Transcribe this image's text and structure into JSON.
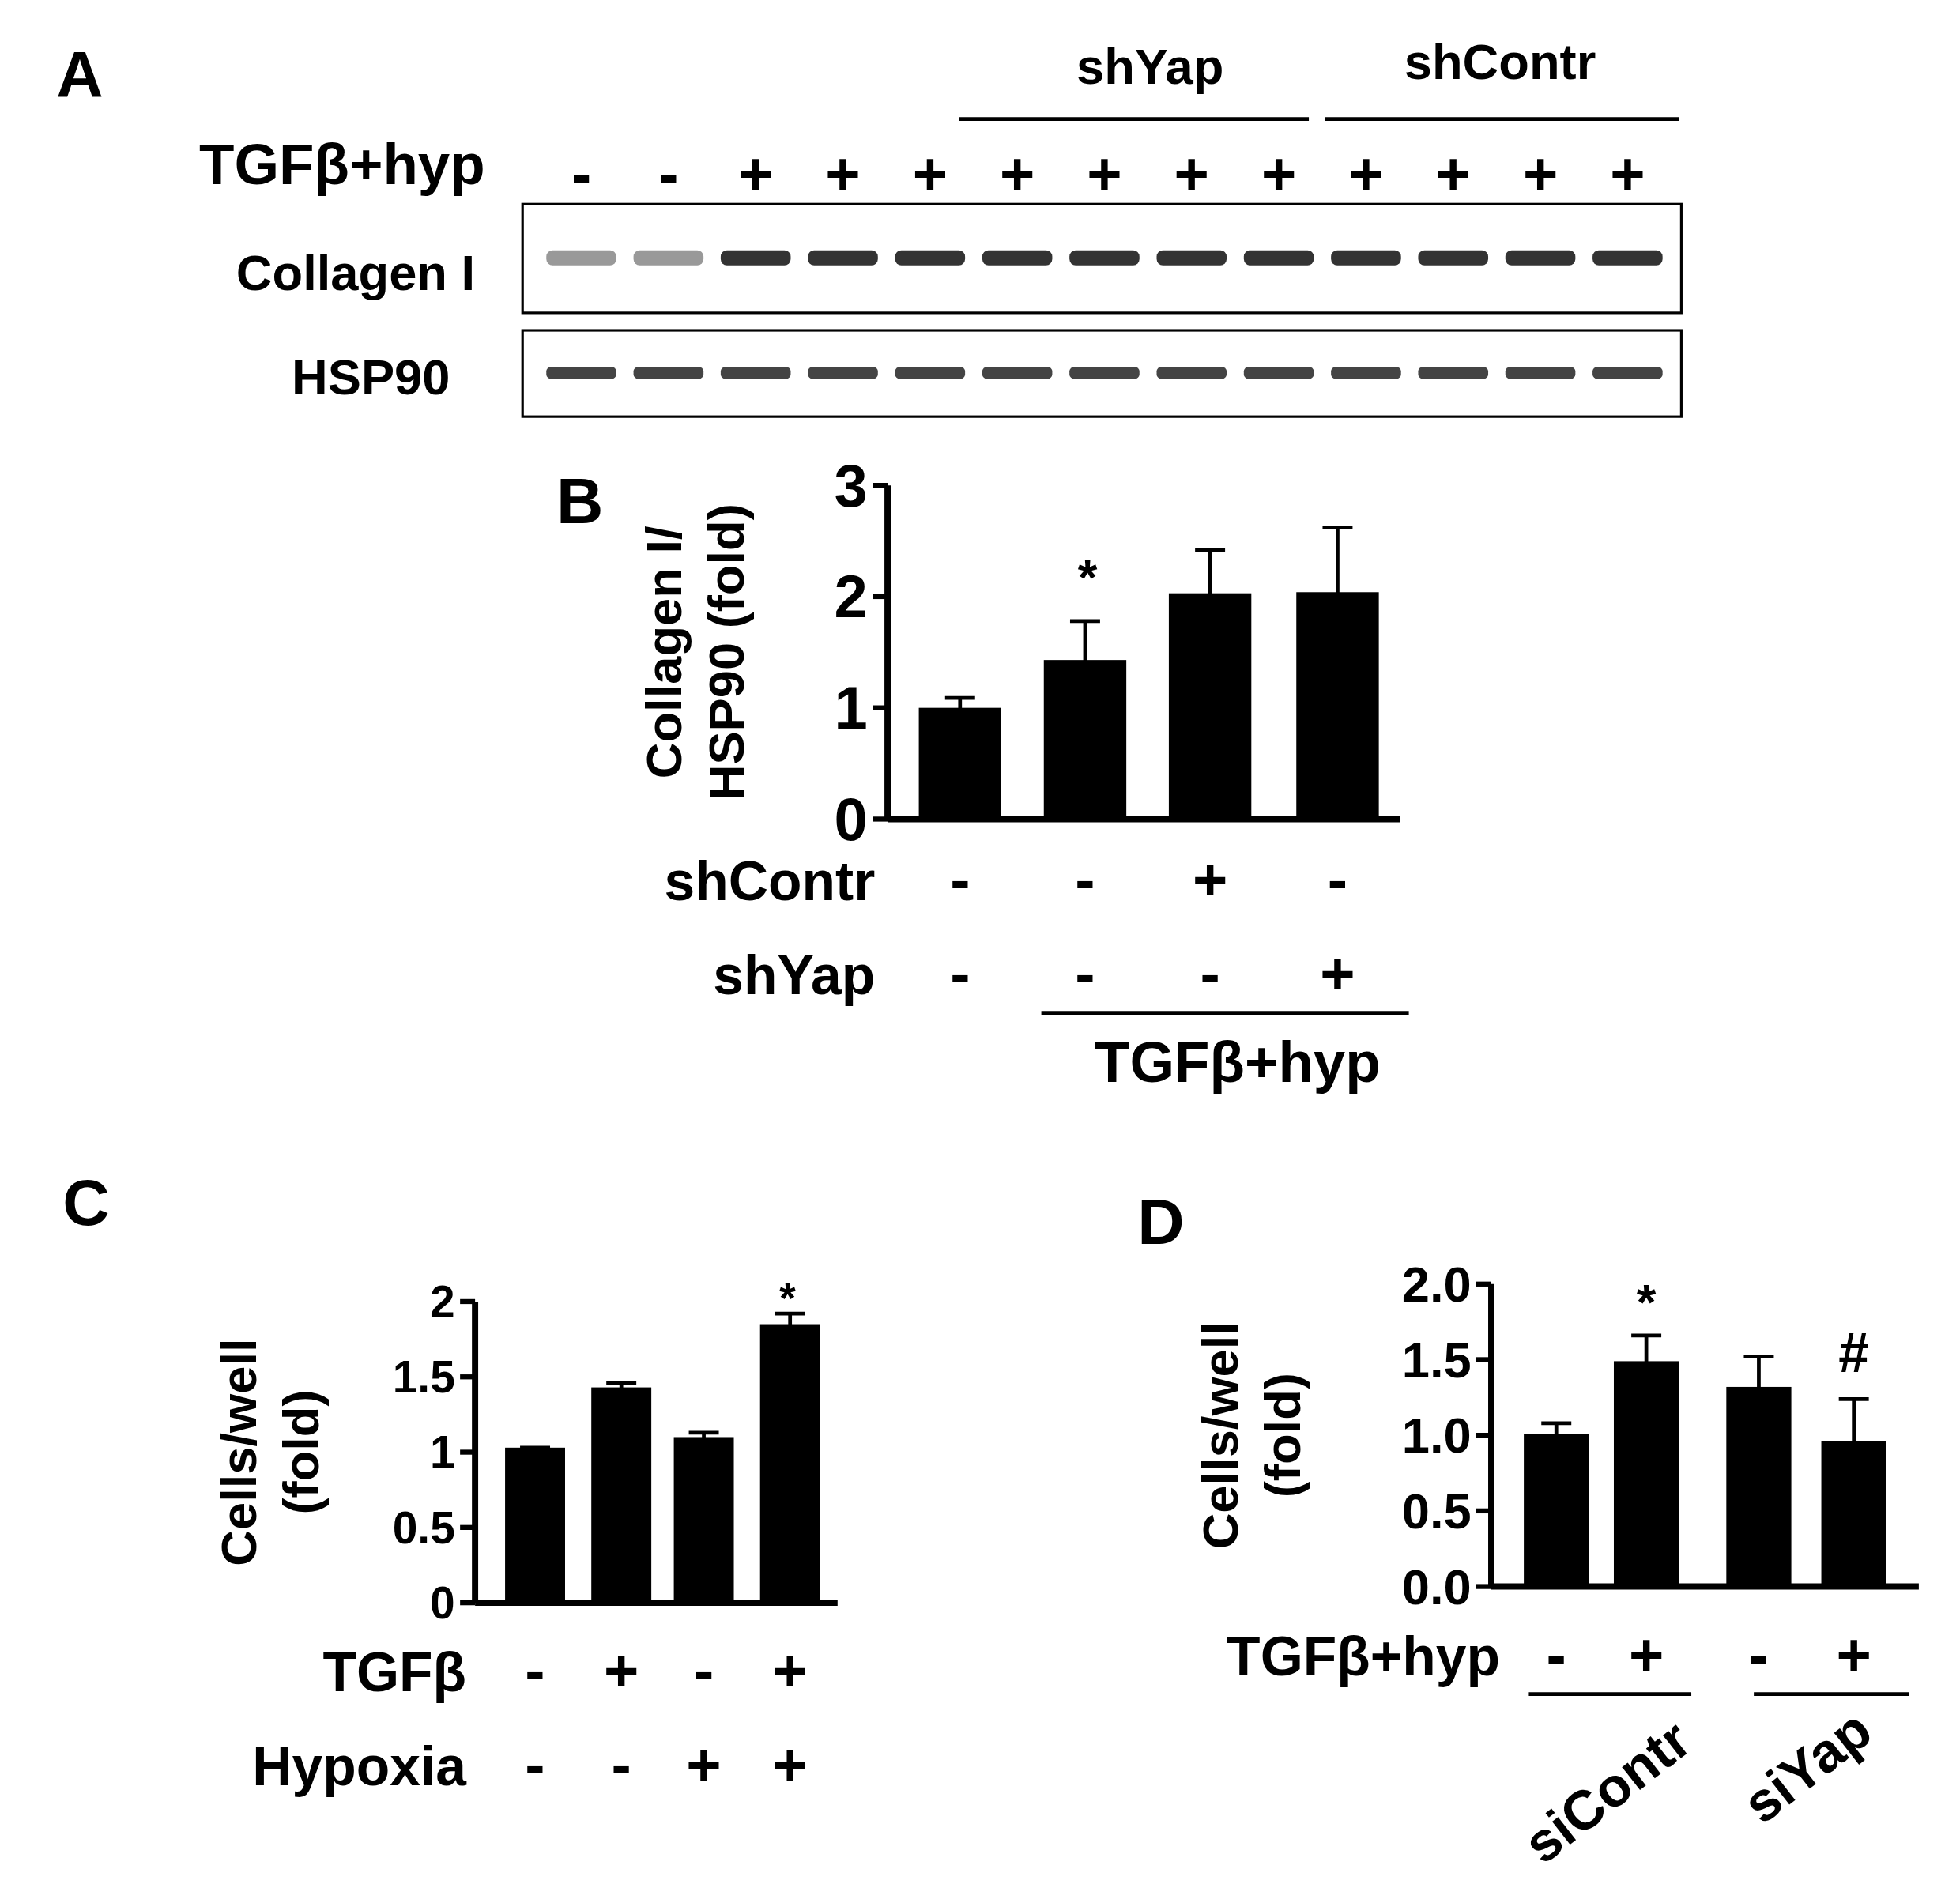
{
  "chart_data": [
    {
      "type": "other",
      "title": "A",
      "categories": [
        "-",
        "-",
        "+",
        "+",
        "+",
        "+",
        "+",
        "+",
        "+",
        "+",
        "+",
        "+",
        "+"
      ],
      "annotations": [
        "shYap",
        "shContr",
        "TGFβ+hyp",
        "Collagen I",
        "HSP90"
      ]
    },
    {
      "type": "bar",
      "title": "B",
      "ylabel": "Collagen I/\nHSP90 (fold)",
      "categories": [
        "-\n-",
        "-\n-",
        "+\n-",
        "-\n+"
      ],
      "values": [
        1.0,
        1.43,
        2.03,
        2.04
      ],
      "errors": [
        0.09,
        0.35,
        0.39,
        0.58
      ],
      "color": "#000000",
      "ylim": [
        0,
        3
      ],
      "yticks": [
        0,
        1,
        2,
        3
      ],
      "annotations": [
        "*",
        "shContr",
        "shYap",
        "TGFβ+hyp"
      ]
    },
    {
      "type": "bar",
      "title": "C",
      "ylabel": "Cells/well\n(fold)",
      "categories": [
        "-\n-",
        "+\n-",
        "-\n+",
        "+\n+"
      ],
      "values": [
        1.03,
        1.43,
        1.1,
        1.85
      ],
      "errors": [
        0,
        0.03,
        0.03,
        0.07
      ],
      "color": "#000000",
      "ylim": [
        0,
        2
      ],
      "yticks": [
        0,
        0.5,
        1,
        1.5,
        2
      ],
      "annotations": [
        "*",
        "TGFβ",
        "Hypoxia"
      ]
    },
    {
      "type": "bar",
      "title": "D",
      "ylabel": "Cells/well\n(fold)",
      "categories": [
        "-",
        "+",
        "-",
        "+"
      ],
      "values": [
        1.01,
        1.49,
        1.32,
        0.96
      ],
      "errors": [
        0.07,
        0.17,
        0.2,
        0.28
      ],
      "color": "#000000",
      "ylim": [
        0,
        2
      ],
      "yticks": [
        {
          "value": 0,
          "label": "0.0"
        },
        {
          "value": 0.5,
          "label": "0.5"
        },
        {
          "value": 1,
          "label": "1.0"
        },
        {
          "value": 1.5,
          "label": "1.5"
        },
        {
          "value": 2,
          "label": "2.0"
        }
      ],
      "annotations": [
        "*",
        "#",
        "TGFβ+hyp",
        "siContr",
        "siYap"
      ]
    }
  ]
}
